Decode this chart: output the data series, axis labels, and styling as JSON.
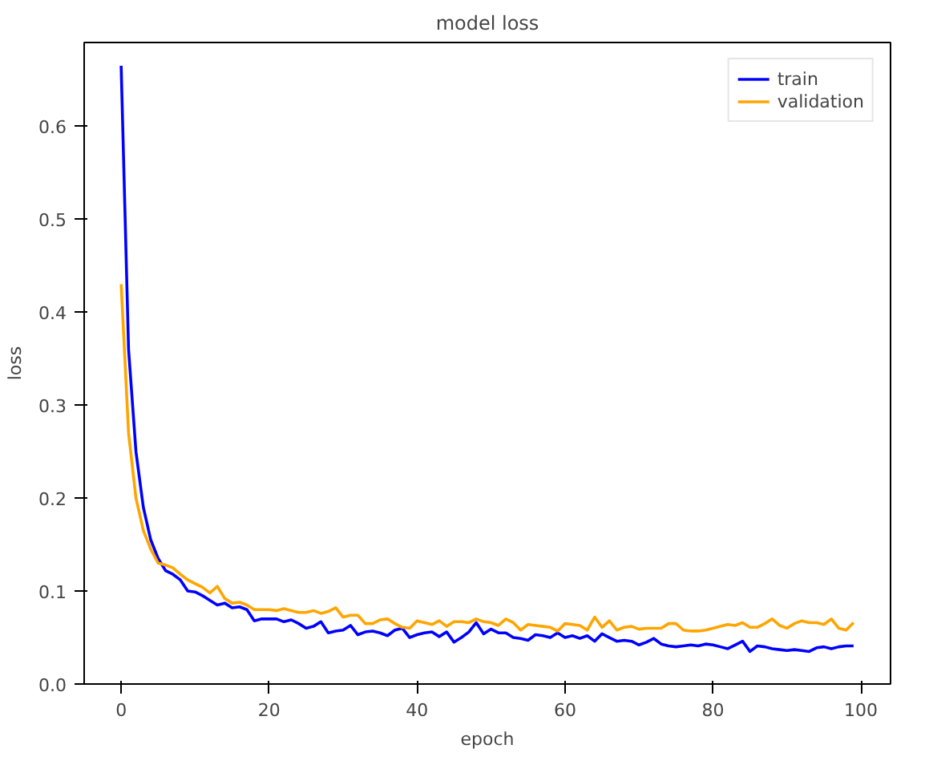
{
  "chart_data": {
    "type": "line",
    "title": "model loss",
    "xlabel": "epoch",
    "ylabel": "loss",
    "x": [
      0,
      1,
      2,
      3,
      4,
      5,
      6,
      7,
      8,
      9,
      10,
      11,
      12,
      13,
      14,
      15,
      16,
      17,
      18,
      19,
      20,
      21,
      22,
      23,
      24,
      25,
      26,
      27,
      28,
      29,
      30,
      31,
      32,
      33,
      34,
      35,
      36,
      37,
      38,
      39,
      40,
      41,
      42,
      43,
      44,
      45,
      46,
      47,
      48,
      49,
      50,
      51,
      52,
      53,
      54,
      55,
      56,
      57,
      58,
      59,
      60,
      61,
      62,
      63,
      64,
      65,
      66,
      67,
      68,
      69,
      70,
      71,
      72,
      73,
      74,
      75,
      76,
      77,
      78,
      79,
      80,
      81,
      82,
      83,
      84,
      85,
      86,
      87,
      88,
      89,
      90,
      91,
      92,
      93,
      94,
      95,
      96,
      97,
      98,
      99
    ],
    "series": [
      {
        "name": "train",
        "color": "#0000ff",
        "values": [
          0.665,
          0.36,
          0.25,
          0.19,
          0.155,
          0.135,
          0.122,
          0.118,
          0.112,
          0.1,
          0.099,
          0.095,
          0.09,
          0.085,
          0.087,
          0.082,
          0.083,
          0.08,
          0.068,
          0.07,
          0.07,
          0.07,
          0.067,
          0.069,
          0.065,
          0.06,
          0.062,
          0.067,
          0.055,
          0.057,
          0.058,
          0.063,
          0.053,
          0.056,
          0.057,
          0.055,
          0.052,
          0.058,
          0.06,
          0.05,
          0.053,
          0.055,
          0.056,
          0.051,
          0.056,
          0.045,
          0.05,
          0.056,
          0.066,
          0.054,
          0.059,
          0.055,
          0.055,
          0.05,
          0.049,
          0.047,
          0.053,
          0.052,
          0.05,
          0.055,
          0.05,
          0.052,
          0.049,
          0.052,
          0.046,
          0.054,
          0.05,
          0.046,
          0.047,
          0.046,
          0.042,
          0.045,
          0.049,
          0.043,
          0.041,
          0.04,
          0.041,
          0.042,
          0.041,
          0.043,
          0.042,
          0.04,
          0.038,
          0.042,
          0.046,
          0.035,
          0.041,
          0.04,
          0.038,
          0.037,
          0.036,
          0.037,
          0.036,
          0.035,
          0.039,
          0.04,
          0.038,
          0.04,
          0.041,
          0.041
        ]
      },
      {
        "name": "validation",
        "color": "#ffa500",
        "values": [
          0.43,
          0.27,
          0.2,
          0.165,
          0.145,
          0.13,
          0.128,
          0.125,
          0.118,
          0.112,
          0.108,
          0.104,
          0.098,
          0.105,
          0.092,
          0.087,
          0.088,
          0.085,
          0.08,
          0.08,
          0.08,
          0.079,
          0.081,
          0.079,
          0.077,
          0.077,
          0.079,
          0.076,
          0.078,
          0.082,
          0.072,
          0.074,
          0.074,
          0.065,
          0.065,
          0.069,
          0.07,
          0.065,
          0.061,
          0.06,
          0.068,
          0.066,
          0.064,
          0.068,
          0.062,
          0.067,
          0.067,
          0.066,
          0.07,
          0.067,
          0.066,
          0.063,
          0.07,
          0.066,
          0.058,
          0.064,
          0.063,
          0.062,
          0.061,
          0.057,
          0.065,
          0.064,
          0.063,
          0.058,
          0.072,
          0.061,
          0.068,
          0.058,
          0.061,
          0.062,
          0.059,
          0.06,
          0.06,
          0.06,
          0.065,
          0.065,
          0.058,
          0.057,
          0.057,
          0.058,
          0.06,
          0.062,
          0.064,
          0.063,
          0.066,
          0.061,
          0.061,
          0.065,
          0.07,
          0.063,
          0.06,
          0.065,
          0.068,
          0.066,
          0.066,
          0.064,
          0.07,
          0.06,
          0.058,
          0.066
        ]
      }
    ],
    "xlim": [
      -5,
      104
    ],
    "ylim": [
      0,
      0.69
    ],
    "xticks": [
      0,
      20,
      40,
      60,
      80,
      100
    ],
    "yticks": [
      {
        "value": 0,
        "label": "0.0"
      },
      {
        "value": 0.1,
        "label": "0.1"
      },
      {
        "value": 0.2,
        "label": "0.2"
      },
      {
        "value": 0.3,
        "label": "0.3"
      },
      {
        "value": 0.4,
        "label": "0.4"
      },
      {
        "value": 0.5,
        "label": "0.5"
      },
      {
        "value": 0.6,
        "label": "0.6"
      }
    ],
    "legend": "top right",
    "marker": "none",
    "line_style": "solid"
  }
}
